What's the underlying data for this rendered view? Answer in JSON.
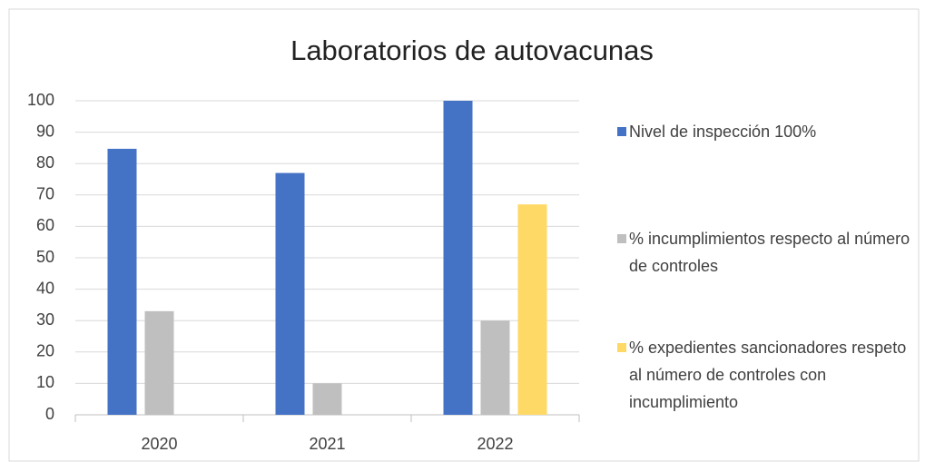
{
  "chart_data": {
    "type": "bar",
    "title": "Laboratorios de autovacunas",
    "categories": [
      "2020",
      "2021",
      "2022"
    ],
    "series": [
      {
        "name": "Nivel de inspección 100%",
        "color": "#4472c4",
        "values": [
          84.7,
          77,
          100
        ]
      },
      {
        "name": "% incumplimientos respecto al número de controles",
        "color": "#bfbfbf",
        "values": [
          33,
          10,
          30
        ]
      },
      {
        "name": "% expedientes sancionadores respeto al número de controles con incumplimiento",
        "color": "#ffd966",
        "values": [
          null,
          null,
          67
        ]
      }
    ],
    "ylim": [
      0,
      100
    ],
    "yticks": [
      0,
      10,
      20,
      30,
      40,
      50,
      60,
      70,
      80,
      90,
      100
    ],
    "grid": true,
    "legend": "right"
  }
}
